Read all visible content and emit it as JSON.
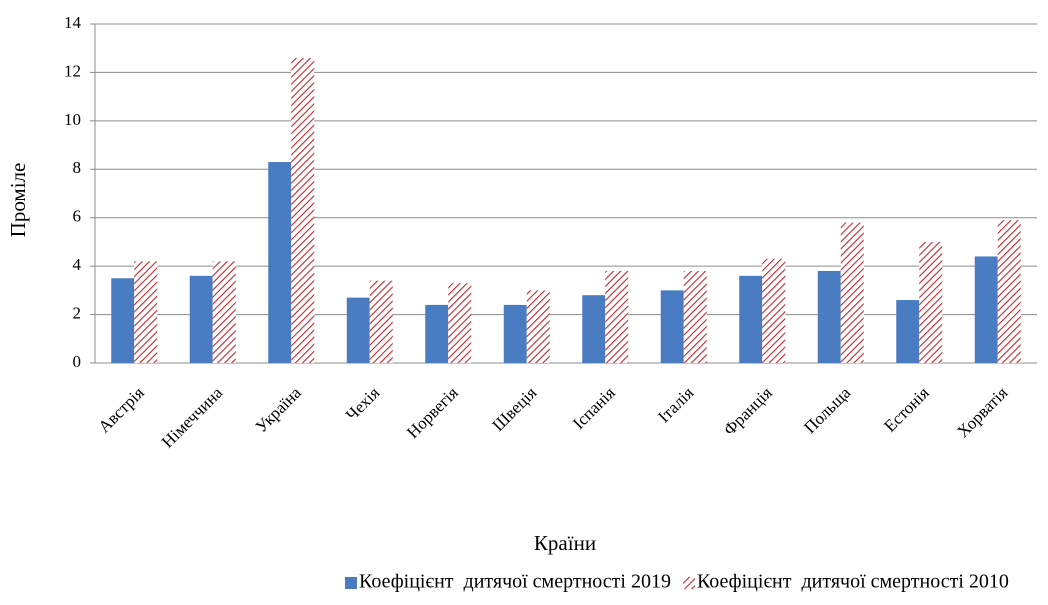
{
  "chart_data": {
    "type": "bar",
    "x_label": "Країни",
    "y_label": "Проміле",
    "categories": [
      "Австрія",
      "Німеччина",
      "Україна",
      "Чехія",
      "Норвегія",
      "Швеція",
      "Іспанія",
      "Італія",
      "Франція",
      "Польща",
      "Естонія",
      "Хорватія"
    ],
    "series": [
      {
        "name": "Коефіцієнт  дитячої смертності 2019",
        "color": "#4a7cc2",
        "pattern": "solid",
        "values": [
          3.5,
          3.6,
          8.3,
          2.7,
          2.4,
          2.4,
          2.8,
          3.0,
          3.6,
          3.8,
          2.6,
          4.4
        ]
      },
      {
        "name": "Коефіцієнт  дитячої смертності 2010",
        "color": "#c0272d",
        "pattern": "hatch",
        "values": [
          4.2,
          4.2,
          12.6,
          3.4,
          3.3,
          3.0,
          3.8,
          3.8,
          4.3,
          5.8,
          5.0,
          5.9
        ]
      }
    ],
    "ylim": [
      0,
      14
    ],
    "yticks": [
      0,
      2,
      4,
      6,
      8,
      10,
      12,
      14
    ],
    "grid": true,
    "legend": "bottom"
  }
}
